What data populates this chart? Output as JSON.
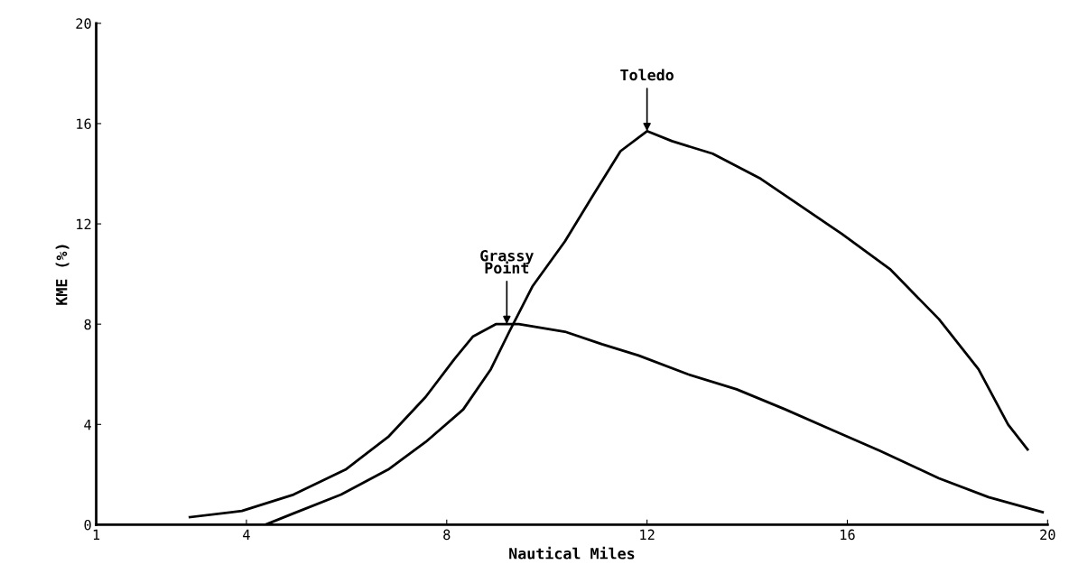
{
  "chart_data": {
    "type": "line",
    "xlabel": "Nautical Miles",
    "ylabel": "KME (%)",
    "xlim": [
      1,
      20
    ],
    "xticks": [
      1,
      4,
      8,
      12,
      16,
      20
    ],
    "ylim": [
      0,
      20
    ],
    "yticks": [
      0,
      4,
      8,
      12,
      16,
      20
    ],
    "grid": false,
    "legend": false,
    "marker": "none",
    "line_style": "solid",
    "series": [
      {
        "color": "#000000",
        "x": [
          2.87,
          3.91,
          4.94,
          5.98,
          6.83,
          7.58,
          8.15,
          8.52,
          8.98,
          9.44,
          10.36,
          11.1,
          11.83,
          12.82,
          13.79,
          14.76,
          15.73,
          16.65,
          17.83,
          18.82,
          19.9
        ],
        "values": [
          0.3,
          0.55,
          1.2,
          2.2,
          3.5,
          5.1,
          6.6,
          7.5,
          8.0,
          8.0,
          7.7,
          7.2,
          6.75,
          6.0,
          5.4,
          4.6,
          3.75,
          2.95,
          1.85,
          1.1,
          0.5
        ]
      },
      {
        "color": "#000000",
        "x": [
          4.38,
          4.94,
          5.89,
          6.83,
          7.58,
          8.33,
          8.88,
          9.25,
          9.71,
          10.36,
          10.91,
          11.47,
          12.0,
          12.5,
          13.31,
          14.27,
          15.08,
          15.89,
          16.85,
          17.83,
          18.62,
          19.21,
          19.6
        ],
        "values": [
          0,
          0.45,
          1.2,
          2.2,
          3.3,
          4.6,
          6.2,
          7.7,
          9.5,
          11.3,
          13.1,
          14.9,
          15.7,
          15.3,
          14.8,
          13.8,
          12.7,
          11.6,
          10.2,
          8.2,
          6.2,
          4.0,
          3.0
        ]
      }
    ],
    "annotations": [
      {
        "text": "Toledo",
        "x": 12.0,
        "y": 15.7
      },
      {
        "text": "Grassy\nPoint",
        "x": 9.2,
        "y": 8.0
      }
    ]
  }
}
